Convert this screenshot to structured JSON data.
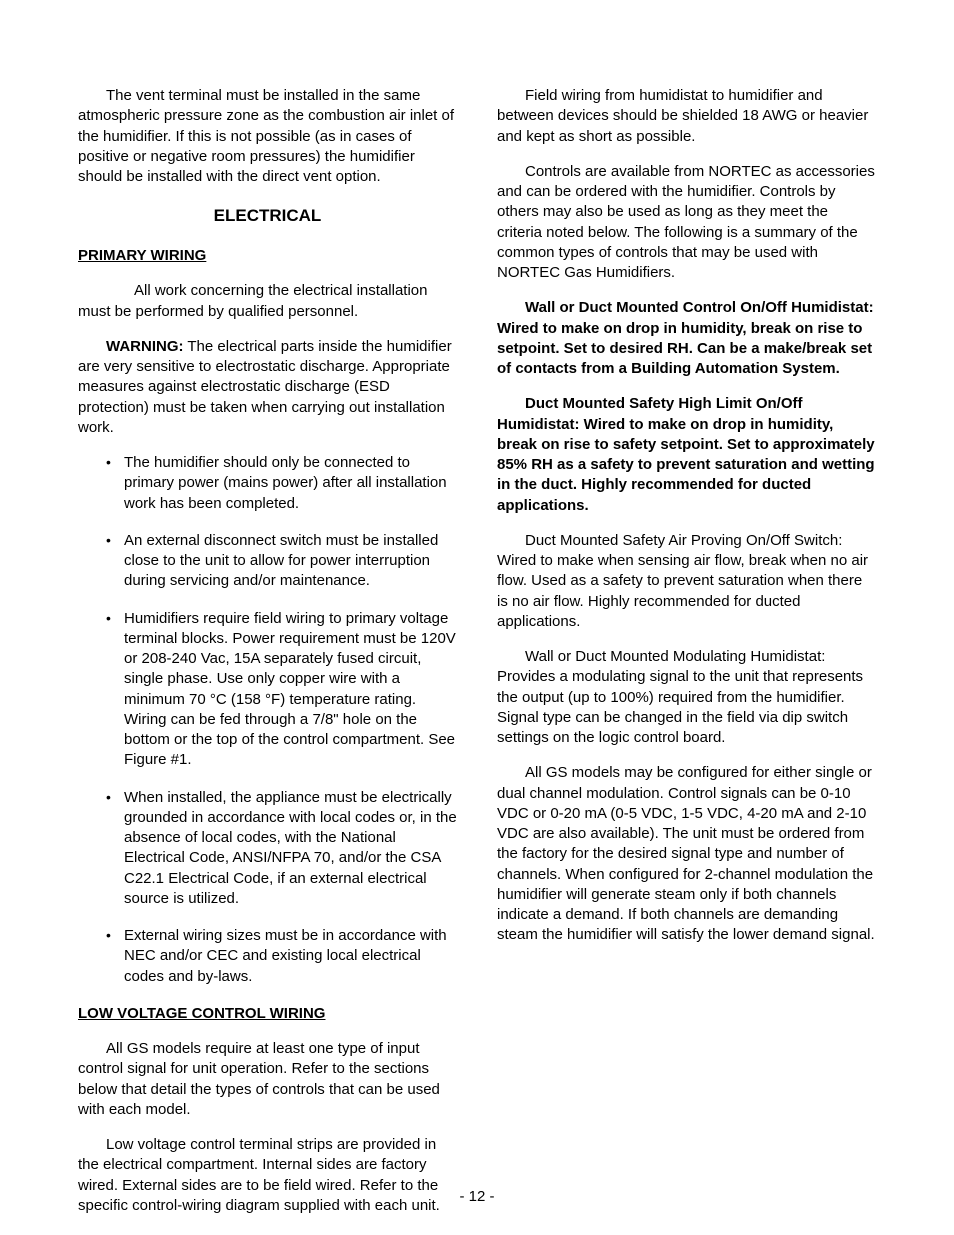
{
  "col1": {
    "intro": "The vent terminal must be installed in the same atmospheric pressure zone as the combustion air inlet of the humidifier.  If this is not possible (as in cases of positive or negative room pressures) the humidifier should be installed with the direct vent option.",
    "heading_electrical": "ELECTRICAL",
    "subheading_primary": "PRIMARY WIRING",
    "p1": "All work concerning the electrical installation must be performed by qualified personnel.",
    "warning_label": "WARNING:",
    "warning_text": " The electrical parts inside the humidifier are very sensitive to electrostatic discharge. Appropriate measures against electrostatic discharge (ESD protection) must be taken when carrying out installation work.",
    "bullets": [
      "The humidifier should only be connected to primary power (mains power) after all installation work has been completed.",
      "An external disconnect switch must be installed close to the unit to allow for power interruption during servicing and/or maintenance.",
      "Humidifiers require field wiring to primary voltage terminal blocks.  Power requirement must be 120V or 208-240 Vac, 15A separately fused circuit, single phase.  Use only copper wire with a minimum   70 °C (158 °F) temperature rating.  Wiring can be fed through a 7/8\" hole on the bottom or the top of the control compartment.   See Figure #1.",
      "When installed, the appliance must be electrically grounded in accordance with local codes or, in the absence of local codes, with the National Electrical Code, ANSI/NFPA 70, and/or the CSA C22.1 Electrical Code, if an external electrical source is utilized.",
      "External wiring sizes must be in accordance with NEC and/or CEC and existing local electrical codes and by-laws."
    ],
    "subheading_low": "LOW  VOLTAGE CONTROL WIRING ",
    "p_low1": "All GS models require at least one type of input control signal for unit operation.  Refer to the sections below that detail the types of controls that can be used with each model.",
    "p_low2": "Low voltage control terminal strips are provided in the electrical compartment.  Internal sides are factory wired.  External sides are to be field wired.  Refer to the specific control-wiring diagram supplied with each unit."
  },
  "col2": {
    "p1": "Field wiring from humidistat to humidifier and between devices should be shielded 18 AWG or heavier and kept as short as possible.",
    "p2": "Controls are available from NORTEC as accessories and can be ordered with the humidifier. Controls by others may also be used as long as they meet the criteria noted below.  The following is a summary of the common types of controls that may be used with NORTEC Gas Humidifiers.",
    "p3": "Wall or Duct Mounted Control On/Off Humidistat:  Wired to make on drop in humidity, break on rise to setpoint.  Set to desired RH.  Can be a make/break set of contacts from a Building Automation System.",
    "p4": "Duct Mounted Safety High Limit On/Off Humidistat:  Wired to make on drop in humidity, break on rise to safety setpoint.  Set to approximately 85% RH as a safety to prevent saturation and wetting in the duct.  Highly recommended for ducted applications.",
    "p5": "Duct Mounted Safety Air Proving On/Off Switch:  Wired to make when sensing air flow, break when no air flow.  Used as a safety to prevent saturation when there is no air flow.  Highly recommended for ducted applications.",
    "p6": "Wall or Duct Mounted Modulating Humidistat: Provides a modulating signal to the unit that represents the output (up to 100%) required from the humidifier.  Signal type can be changed in the field via dip switch settings on the logic control board.",
    "p7": "All GS models may be configured for either single or dual channel modulation.  Control signals can be 0-10 VDC or 0-20 mA (0-5 VDC, 1-5 VDC, 4-20 mA and 2-10 VDC are also available).  The unit must be ordered from the factory for the desired signal type and number of channels.  When configured for 2-channel modulation the humidifier will generate steam only if both channels indicate a demand.  If both channels are demanding steam the humidifier will satisfy the lower demand signal."
  },
  "page_number": "- 12 -"
}
